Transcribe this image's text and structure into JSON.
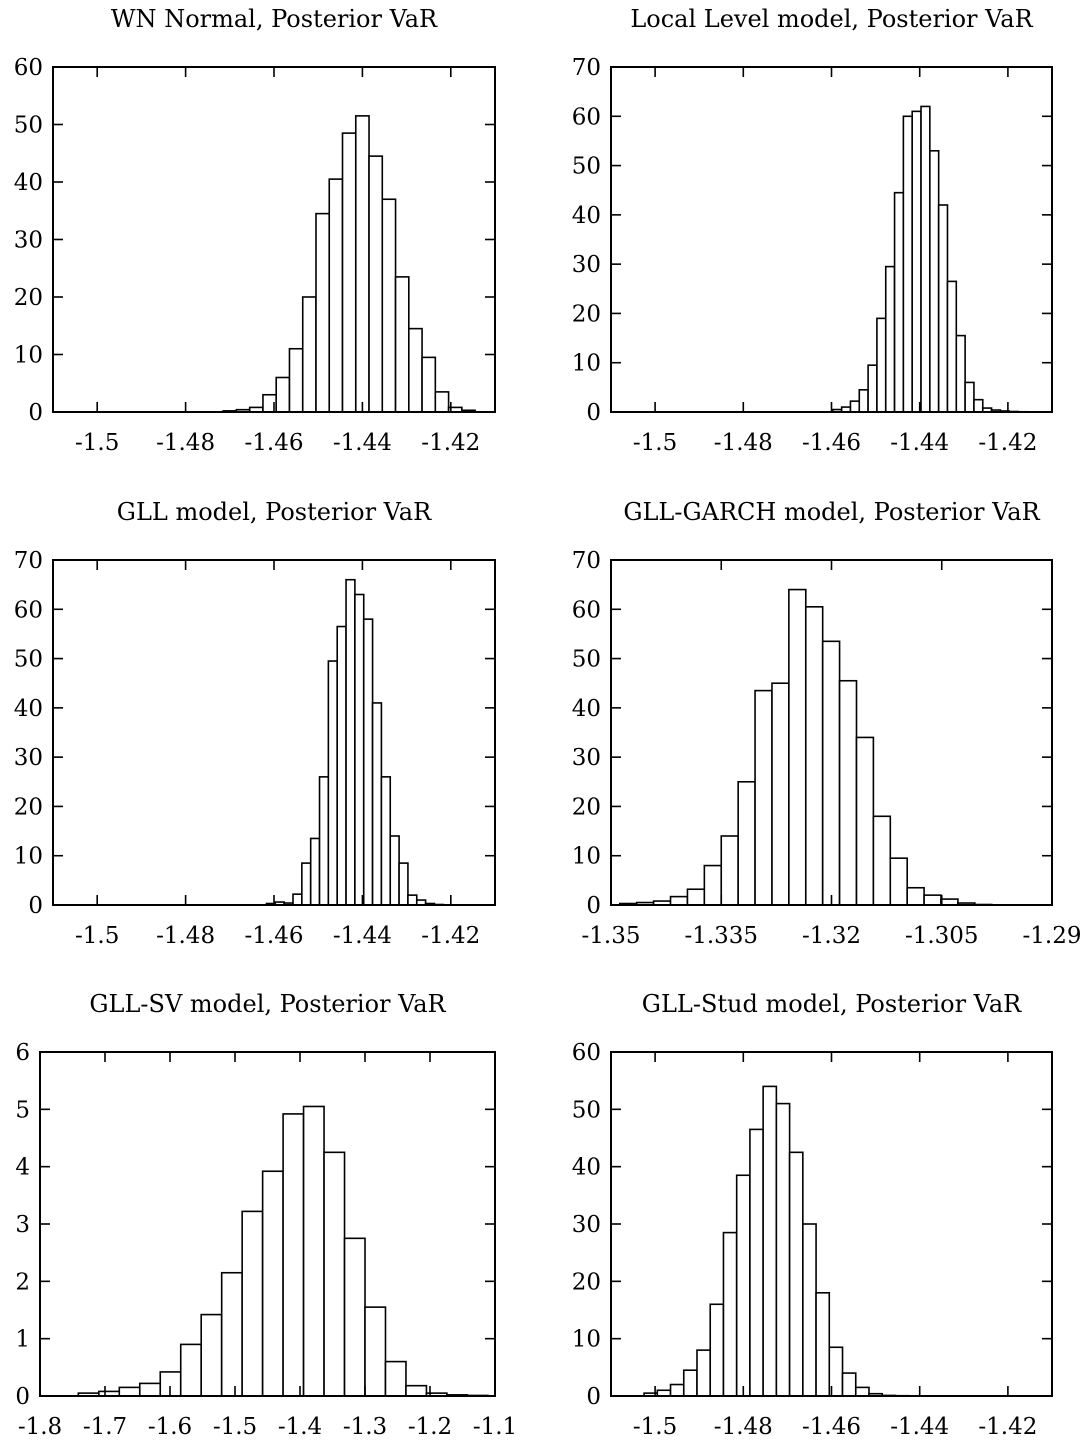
{
  "chart_data": [
    {
      "type": "bar",
      "title": "WN Normal, Posterior VaR",
      "xlabel": "",
      "ylabel": "",
      "xlim": [
        -1.51,
        -1.41
      ],
      "ylim": [
        0,
        60
      ],
      "xticks": [
        -1.5,
        -1.48,
        -1.46,
        -1.44,
        -1.42
      ],
      "xtick_labels": [
        "-1.5",
        "-1.48",
        "-1.46",
        "-1.44",
        "-1.42"
      ],
      "yticks": [
        0,
        10,
        20,
        30,
        40,
        50,
        60
      ],
      "ytick_labels": [
        "0",
        "10",
        "20",
        "30",
        "40",
        "50",
        "60"
      ],
      "bin_width": 0.003,
      "bin_starts": [
        -1.4715,
        -1.4685,
        -1.4655,
        -1.4625,
        -1.4595,
        -1.4565,
        -1.4535,
        -1.4505,
        -1.4475,
        -1.4445,
        -1.4415,
        -1.4385,
        -1.4355,
        -1.4325,
        -1.4295,
        -1.4265,
        -1.4235,
        -1.4205,
        -1.4175
      ],
      "values": [
        0.2,
        0.4,
        0.8,
        3,
        6,
        11,
        20,
        34.5,
        40.5,
        48.5,
        51.5,
        44.5,
        37,
        23.5,
        14.5,
        9.5,
        3.5,
        0.8,
        0.3
      ],
      "grid": false
    },
    {
      "type": "bar",
      "title": "Local Level model, Posterior VaR",
      "xlabel": "",
      "ylabel": "",
      "xlim": [
        -1.51,
        -1.41
      ],
      "ylim": [
        0,
        70
      ],
      "xticks": [
        -1.5,
        -1.48,
        -1.46,
        -1.44,
        -1.42
      ],
      "xtick_labels": [
        "-1.5",
        "-1.48",
        "-1.46",
        "-1.44",
        "-1.42"
      ],
      "yticks": [
        0,
        10,
        20,
        30,
        40,
        50,
        60,
        70
      ],
      "ytick_labels": [
        "0",
        "10",
        "20",
        "30",
        "40",
        "50",
        "60",
        "70"
      ],
      "bin_width": 0.002,
      "bin_starts": [
        -1.4597,
        -1.4577,
        -1.4557,
        -1.4537,
        -1.4517,
        -1.4497,
        -1.4477,
        -1.4457,
        -1.4437,
        -1.4417,
        -1.4397,
        -1.4377,
        -1.4357,
        -1.4337,
        -1.4317,
        -1.4297,
        -1.4277,
        -1.4257,
        -1.4237,
        -1.4217,
        -1.4197,
        -1.4177,
        -1.4157
      ],
      "values": [
        0.5,
        1,
        2.2,
        4.5,
        9.5,
        19,
        29.5,
        44.5,
        60,
        61,
        62,
        53,
        42,
        26.5,
        15.5,
        6,
        2.5,
        0.8,
        0.4,
        0.2,
        0.1,
        0.05,
        0.02
      ],
      "grid": false
    },
    {
      "type": "bar",
      "title": "GLL model, Posterior VaR",
      "xlabel": "",
      "ylabel": "",
      "xlim": [
        -1.51,
        -1.41
      ],
      "ylim": [
        0,
        70
      ],
      "xticks": [
        -1.5,
        -1.48,
        -1.46,
        -1.44,
        -1.42
      ],
      "xtick_labels": [
        "-1.5",
        "-1.48",
        "-1.46",
        "-1.44",
        "-1.42"
      ],
      "yticks": [
        0,
        10,
        20,
        30,
        40,
        50,
        60,
        70
      ],
      "ytick_labels": [
        "0",
        "10",
        "20",
        "30",
        "40",
        "50",
        "60",
        "70"
      ],
      "bin_width": 0.002,
      "bin_starts": [
        -1.4617,
        -1.4597,
        -1.4577,
        -1.4557,
        -1.4537,
        -1.4517,
        -1.4497,
        -1.4477,
        -1.4457,
        -1.4437,
        -1.4417,
        -1.4397,
        -1.4377,
        -1.4357,
        -1.4337,
        -1.4317,
        -1.4297,
        -1.4277,
        -1.4257,
        -1.4237
      ],
      "values": [
        0.3,
        0.6,
        0.4,
        2.2,
        8.5,
        13.5,
        26,
        49.5,
        56.5,
        66,
        63,
        58,
        41,
        26,
        14,
        8.5,
        2,
        1,
        0.3,
        0.1
      ],
      "grid": false
    },
    {
      "type": "bar",
      "title": "GLL-GARCH model, Posterior VaR",
      "xlabel": "",
      "ylabel": "",
      "xlim": [
        -1.35,
        -1.29
      ],
      "ylim": [
        0,
        70
      ],
      "xticks": [
        -1.35,
        -1.335,
        -1.32,
        -1.305,
        -1.29
      ],
      "xtick_labels": [
        "-1.35",
        "-1.335",
        "-1.32",
        "-1.305",
        "-1.29"
      ],
      "yticks": [
        0,
        10,
        20,
        30,
        40,
        50,
        60,
        70
      ],
      "ytick_labels": [
        "0",
        "10",
        "20",
        "30",
        "40",
        "50",
        "60",
        "70"
      ],
      "bin_width": 0.0023,
      "bin_starts": [
        -1.3488,
        -1.3465,
        -1.3442,
        -1.3419,
        -1.3396,
        -1.3373,
        -1.335,
        -1.3327,
        -1.3304,
        -1.3281,
        -1.3258,
        -1.3235,
        -1.3212,
        -1.3189,
        -1.3166,
        -1.3143,
        -1.312,
        -1.3097,
        -1.3074,
        -1.3051,
        -1.3028,
        -1.3005
      ],
      "values": [
        0.3,
        0.5,
        0.8,
        1.7,
        3.2,
        8,
        14,
        25,
        43.5,
        45,
        64,
        60.5,
        53.5,
        45.5,
        34,
        18,
        9.5,
        3.5,
        2,
        1.2,
        0.4,
        0.1
      ],
      "grid": false
    },
    {
      "type": "bar",
      "title": "GLL-SV model, Posterior VaR",
      "xlabel": "",
      "ylabel": "",
      "xlim": [
        -1.8,
        -1.1
      ],
      "ylim": [
        0,
        6
      ],
      "xticks": [
        -1.8,
        -1.7,
        -1.6,
        -1.5,
        -1.4,
        -1.3,
        -1.2,
        -1.1
      ],
      "xtick_labels": [
        "-1.8",
        "-1.7",
        "-1.6",
        "-1.5",
        "-1.4",
        "-1.3",
        "-1.2",
        "-1.1"
      ],
      "yticks": [
        0,
        1,
        2,
        3,
        4,
        5,
        6
      ],
      "ytick_labels": [
        "0",
        "1",
        "2",
        "3",
        "4",
        "5",
        "6"
      ],
      "bin_width": 0.0315,
      "bin_starts": [
        -1.741,
        -1.7095,
        -1.678,
        -1.6465,
        -1.615,
        -1.5835,
        -1.552,
        -1.5205,
        -1.489,
        -1.4575,
        -1.426,
        -1.3945,
        -1.363,
        -1.3315,
        -1.3,
        -1.2685,
        -1.237,
        -1.2055,
        -1.174,
        -1.1425
      ],
      "values": [
        0.05,
        0.08,
        0.15,
        0.22,
        0.42,
        0.9,
        1.42,
        2.15,
        3.22,
        3.92,
        4.92,
        5.05,
        4.25,
        2.75,
        1.55,
        0.6,
        0.18,
        0.05,
        0.02,
        0.01
      ],
      "grid": false
    },
    {
      "type": "bar",
      "title": "GLL-Stud model, Posterior VaR",
      "xlabel": "",
      "ylabel": "",
      "xlim": [
        -1.51,
        -1.41
      ],
      "ylim": [
        0,
        60
      ],
      "xticks": [
        -1.5,
        -1.48,
        -1.46,
        -1.44,
        -1.42
      ],
      "xtick_labels": [
        "-1.5",
        "-1.48",
        "-1.46",
        "-1.44",
        "-1.42"
      ],
      "yticks": [
        0,
        10,
        20,
        30,
        40,
        50,
        60
      ],
      "ytick_labels": [
        "0",
        "10",
        "20",
        "30",
        "40",
        "50",
        "60"
      ],
      "bin_width": 0.003,
      "bin_starts": [
        -1.5025,
        -1.4995,
        -1.4965,
        -1.4935,
        -1.4905,
        -1.4875,
        -1.4845,
        -1.4815,
        -1.4785,
        -1.4755,
        -1.4725,
        -1.4695,
        -1.4665,
        -1.4635,
        -1.4605,
        -1.4575,
        -1.4545,
        -1.4515,
        -1.4485,
        -1.4455,
        -1.4425
      ],
      "values": [
        0.5,
        1,
        2,
        4.5,
        8,
        16,
        28.5,
        38.5,
        46.5,
        54,
        51,
        42.5,
        30,
        18,
        8.5,
        4,
        1.5,
        0.4,
        0.1,
        0.05,
        0.02
      ],
      "grid": false
    }
  ]
}
